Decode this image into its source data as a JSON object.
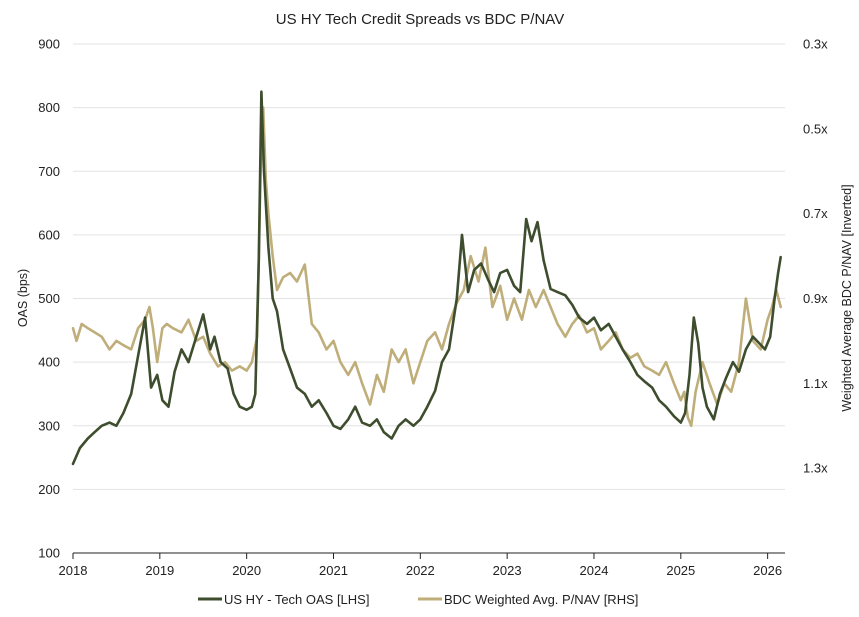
{
  "chart_data": {
    "type": "line",
    "title": "US HY Tech Credit Spreads vs BDC P/NAV",
    "ylabel_left": "OAS (bps)",
    "ylabel_right": "Weighted Average BDC P/NAV [Inverted]",
    "xlim": [
      2018,
      2026.2
    ],
    "ylim_left": [
      100,
      900
    ],
    "ylim_right": [
      1.5,
      0.3
    ],
    "right_axis_inverted": true,
    "grid": "horizontal",
    "legend_position": "bottom",
    "x_ticks": [
      "2018",
      "2019",
      "2020",
      "2021",
      "2022",
      "2023",
      "2024",
      "2025",
      "2026"
    ],
    "left_ticks": [
      "100",
      "200",
      "300",
      "400",
      "500",
      "600",
      "700",
      "800",
      "900"
    ],
    "right_ticks": [
      "0.3x",
      "0.5x",
      "0.7x",
      "0.9x",
      "1.1x",
      "1.3x"
    ],
    "colors": {
      "tech_oas": "#3d4d2e",
      "bdc": "#bfae7a",
      "grid": "#e3e3e3",
      "axis": "#222222"
    },
    "series": [
      {
        "name": "US HY - Tech OAS [LHS]",
        "axis": "left",
        "x": [
          2018.0,
          2018.08,
          2018.17,
          2018.25,
          2018.33,
          2018.42,
          2018.5,
          2018.58,
          2018.67,
          2018.75,
          2018.83,
          2018.9,
          2018.97,
          2019.03,
          2019.1,
          2019.17,
          2019.25,
          2019.33,
          2019.42,
          2019.5,
          2019.58,
          2019.63,
          2019.7,
          2019.78,
          2019.85,
          2019.92,
          2020.0,
          2020.06,
          2020.1,
          2020.14,
          2020.17,
          2020.2,
          2020.22,
          2020.25,
          2020.3,
          2020.35,
          2020.42,
          2020.5,
          2020.58,
          2020.67,
          2020.75,
          2020.83,
          2020.92,
          2021.0,
          2021.08,
          2021.17,
          2021.25,
          2021.33,
          2021.42,
          2021.5,
          2021.58,
          2021.67,
          2021.75,
          2021.83,
          2021.92,
          2022.0,
          2022.08,
          2022.17,
          2022.25,
          2022.33,
          2022.42,
          2022.48,
          2022.55,
          2022.62,
          2022.7,
          2022.78,
          2022.85,
          2022.92,
          2023.0,
          2023.08,
          2023.15,
          2023.22,
          2023.28,
          2023.35,
          2023.42,
          2023.5,
          2023.58,
          2023.67,
          2023.75,
          2023.83,
          2023.92,
          2024.0,
          2024.08,
          2024.17,
          2024.25,
          2024.33,
          2024.42,
          2024.5,
          2024.58,
          2024.67,
          2024.75,
          2024.83,
          2024.92,
          2025.0,
          2025.05,
          2025.1,
          2025.15,
          2025.2,
          2025.25,
          2025.3,
          2025.38,
          2025.45,
          2025.52,
          2025.6,
          2025.67,
          2025.75,
          2025.83,
          2025.9,
          2025.97,
          2026.03,
          2026.08,
          2026.12,
          2026.15
        ],
        "values": [
          240,
          265,
          280,
          290,
          300,
          305,
          300,
          320,
          350,
          410,
          470,
          360,
          380,
          340,
          330,
          385,
          420,
          400,
          440,
          475,
          420,
          440,
          400,
          390,
          350,
          330,
          325,
          330,
          350,
          560,
          825,
          700,
          650,
          580,
          500,
          480,
          420,
          390,
          360,
          350,
          330,
          340,
          320,
          300,
          295,
          310,
          330,
          305,
          300,
          310,
          290,
          280,
          300,
          310,
          300,
          310,
          330,
          355,
          400,
          420,
          500,
          600,
          510,
          545,
          555,
          530,
          510,
          540,
          545,
          520,
          510,
          625,
          590,
          620,
          560,
          515,
          510,
          505,
          490,
          470,
          460,
          470,
          450,
          460,
          440,
          420,
          400,
          380,
          370,
          360,
          340,
          330,
          315,
          305,
          320,
          380,
          470,
          430,
          360,
          330,
          310,
          350,
          375,
          400,
          385,
          420,
          440,
          430,
          420,
          440,
          500,
          540,
          565
        ]
      },
      {
        "name": "BDC Weighted Avg. P/NAV [RHS]",
        "axis": "right",
        "x": [
          2018.0,
          2018.04,
          2018.1,
          2018.17,
          2018.25,
          2018.33,
          2018.42,
          2018.5,
          2018.58,
          2018.67,
          2018.75,
          2018.83,
          2018.88,
          2018.92,
          2018.97,
          2019.03,
          2019.08,
          2019.15,
          2019.25,
          2019.33,
          2019.42,
          2019.5,
          2019.58,
          2019.67,
          2019.75,
          2019.83,
          2019.92,
          2020.0,
          2020.06,
          2020.12,
          2020.16,
          2020.19,
          2020.22,
          2020.25,
          2020.3,
          2020.35,
          2020.42,
          2020.5,
          2020.58,
          2020.67,
          2020.75,
          2020.83,
          2020.92,
          2021.0,
          2021.08,
          2021.17,
          2021.25,
          2021.33,
          2021.42,
          2021.5,
          2021.58,
          2021.67,
          2021.75,
          2021.83,
          2021.92,
          2022.0,
          2022.08,
          2022.17,
          2022.25,
          2022.33,
          2022.42,
          2022.5,
          2022.58,
          2022.67,
          2022.75,
          2022.83,
          2022.92,
          2023.0,
          2023.08,
          2023.17,
          2023.25,
          2023.33,
          2023.42,
          2023.5,
          2023.58,
          2023.67,
          2023.75,
          2023.83,
          2023.92,
          2024.0,
          2024.08,
          2024.17,
          2024.25,
          2024.33,
          2024.42,
          2024.5,
          2024.58,
          2024.67,
          2024.75,
          2024.83,
          2024.92,
          2025.0,
          2025.04,
          2025.08,
          2025.12,
          2025.17,
          2025.25,
          2025.33,
          2025.42,
          2025.5,
          2025.58,
          2025.67,
          2025.75,
          2025.83,
          2025.92,
          2026.0,
          2026.05,
          2026.1,
          2026.15
        ],
        "values": [
          0.97,
          1.0,
          0.96,
          0.97,
          0.98,
          0.99,
          1.02,
          1.0,
          1.01,
          1.02,
          0.97,
          0.95,
          0.92,
          0.97,
          1.05,
          0.97,
          0.96,
          0.97,
          0.98,
          0.95,
          1.0,
          0.99,
          1.03,
          1.06,
          1.05,
          1.07,
          1.06,
          1.07,
          1.05,
          0.99,
          0.6,
          0.45,
          0.62,
          0.7,
          0.8,
          0.88,
          0.85,
          0.84,
          0.86,
          0.82,
          0.96,
          0.98,
          1.02,
          1.0,
          1.05,
          1.08,
          1.05,
          1.1,
          1.15,
          1.08,
          1.12,
          1.02,
          1.05,
          1.02,
          1.1,
          1.05,
          1.0,
          0.98,
          1.02,
          0.96,
          0.91,
          0.88,
          0.8,
          0.86,
          0.78,
          0.92,
          0.87,
          0.95,
          0.9,
          0.95,
          0.88,
          0.92,
          0.88,
          0.92,
          0.96,
          0.99,
          0.96,
          0.94,
          0.98,
          0.97,
          1.02,
          1.0,
          0.98,
          1.02,
          1.04,
          1.03,
          1.06,
          1.07,
          1.08,
          1.05,
          1.1,
          1.14,
          1.12,
          1.18,
          1.2,
          1.12,
          1.05,
          1.1,
          1.15,
          1.1,
          1.12,
          1.05,
          0.9,
          1.0,
          1.02,
          0.95,
          0.92,
          0.88,
          0.92
        ]
      }
    ]
  }
}
